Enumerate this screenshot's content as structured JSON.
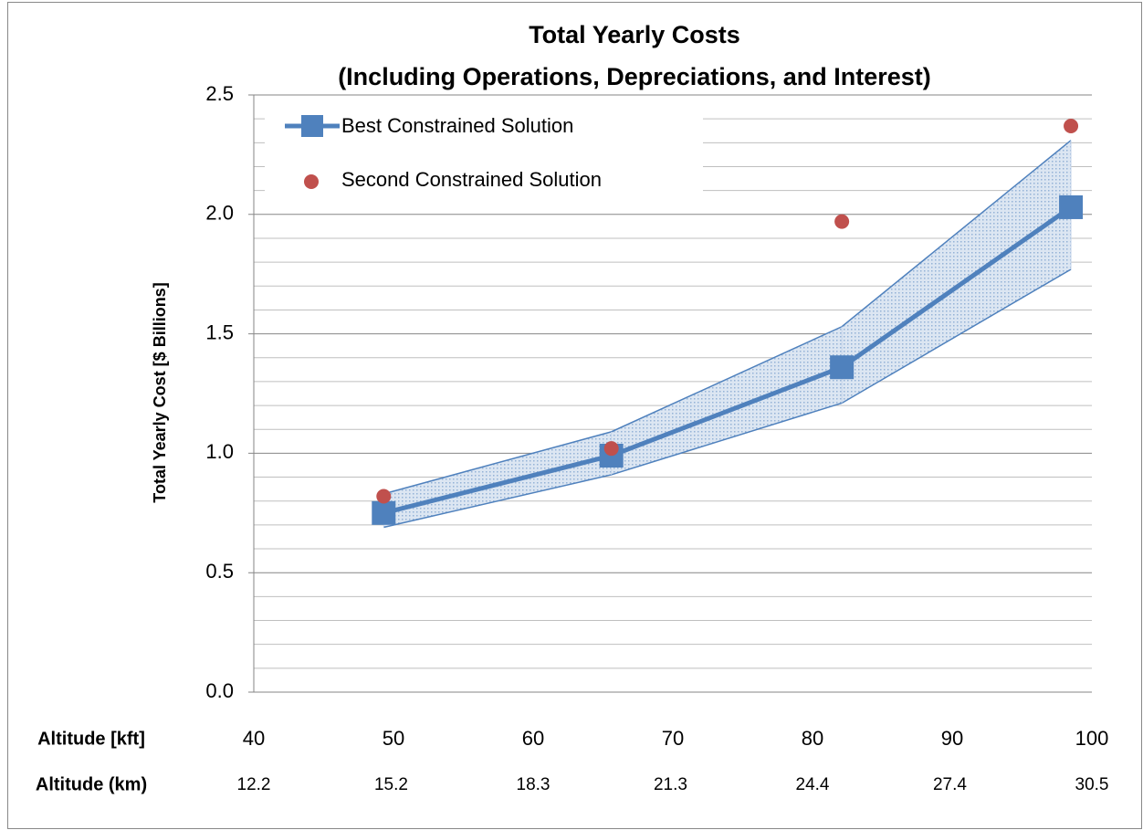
{
  "chart_data": {
    "type": "line",
    "title": "Total Yearly Costs",
    "subtitle": "(Including Operations, Depreciations, and Interest)",
    "y_label": "Total Yearly Cost [$ Billions]",
    "x_label": "Altitude [kft]",
    "x2_label": "Altitude (km)",
    "x": [
      49.3,
      65.6,
      82.1,
      98.5
    ],
    "series": [
      {
        "name": "Best Constrained Solution",
        "color": "#4f81bd",
        "values": [
          0.75,
          0.99,
          1.36,
          2.03
        ],
        "upper": [
          0.83,
          1.09,
          1.53,
          2.31
        ],
        "lower": [
          0.69,
          0.91,
          1.21,
          1.77
        ]
      },
      {
        "name": "Second Constrained Solution",
        "color": "#c0504d",
        "values": [
          0.82,
          1.02,
          1.97,
          2.37
        ]
      }
    ],
    "xlim": [
      40,
      100
    ],
    "xticks": [
      40,
      50,
      60,
      70,
      80,
      90,
      100
    ],
    "x2lim": [
      12.2,
      30.5
    ],
    "x2ticks": [
      12.2,
      15.2,
      18.3,
      21.3,
      24.4,
      27.4,
      30.5
    ],
    "ylim": [
      0,
      2.5
    ],
    "yticks": [
      {
        "value": 0,
        "label": "0.0"
      },
      0.5,
      {
        "value": 1,
        "label": "1.0"
      },
      1.5,
      {
        "value": 2,
        "label": "2.0"
      },
      2.5
    ],
    "minor_yticks": [
      0.1,
      0.2,
      0.3,
      0.4,
      0.6,
      0.7,
      0.8,
      0.9,
      1.1,
      1.2,
      1.3,
      1.4,
      1.6,
      1.7,
      1.8,
      1.9,
      2.1,
      2.2,
      2.3,
      2.4
    ],
    "grid": true,
    "legend": "upper left"
  }
}
